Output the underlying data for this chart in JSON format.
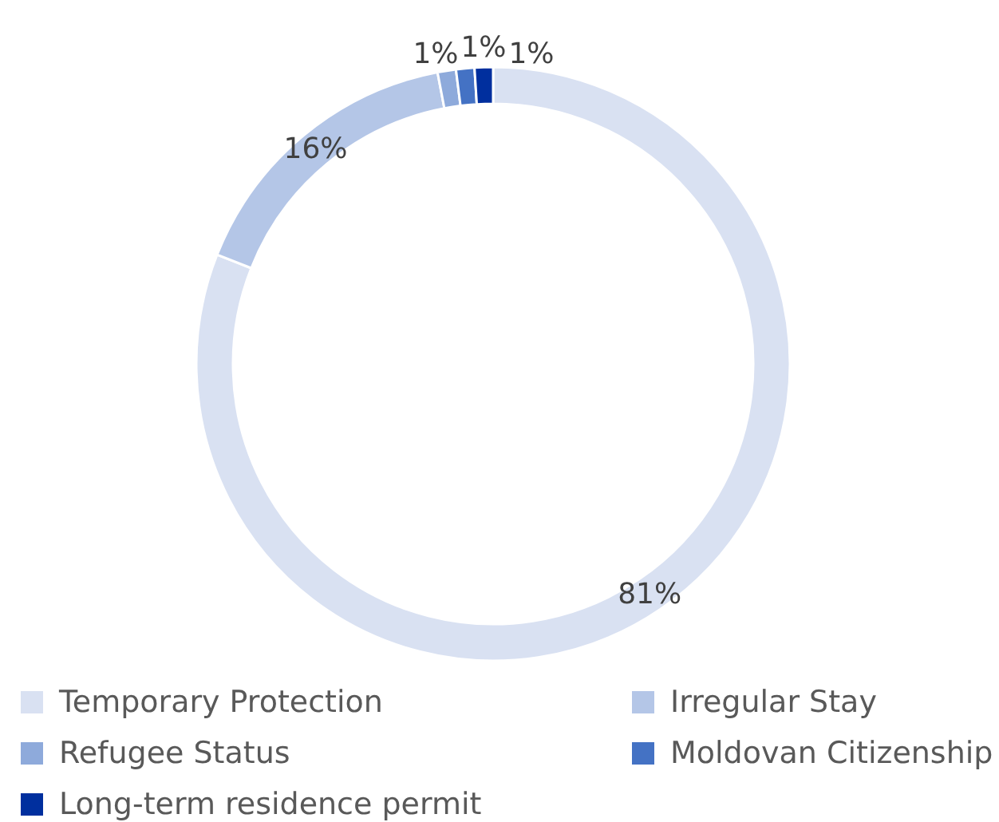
{
  "chart_data": {
    "type": "donut",
    "categories": [
      "Temporary Protection",
      "Irregular Stay",
      "Refugee Status",
      "Moldovan Citizenship",
      "Long-term residence permit"
    ],
    "values": [
      81,
      16,
      1,
      1,
      1
    ],
    "colors": [
      "#d9e1f2",
      "#b4c6e7",
      "#8eaadb",
      "#4472c4",
      "#002f9e"
    ],
    "value_labels": [
      "81%",
      "16%",
      "1%",
      "1%",
      "1%"
    ],
    "legend": "bottom"
  }
}
